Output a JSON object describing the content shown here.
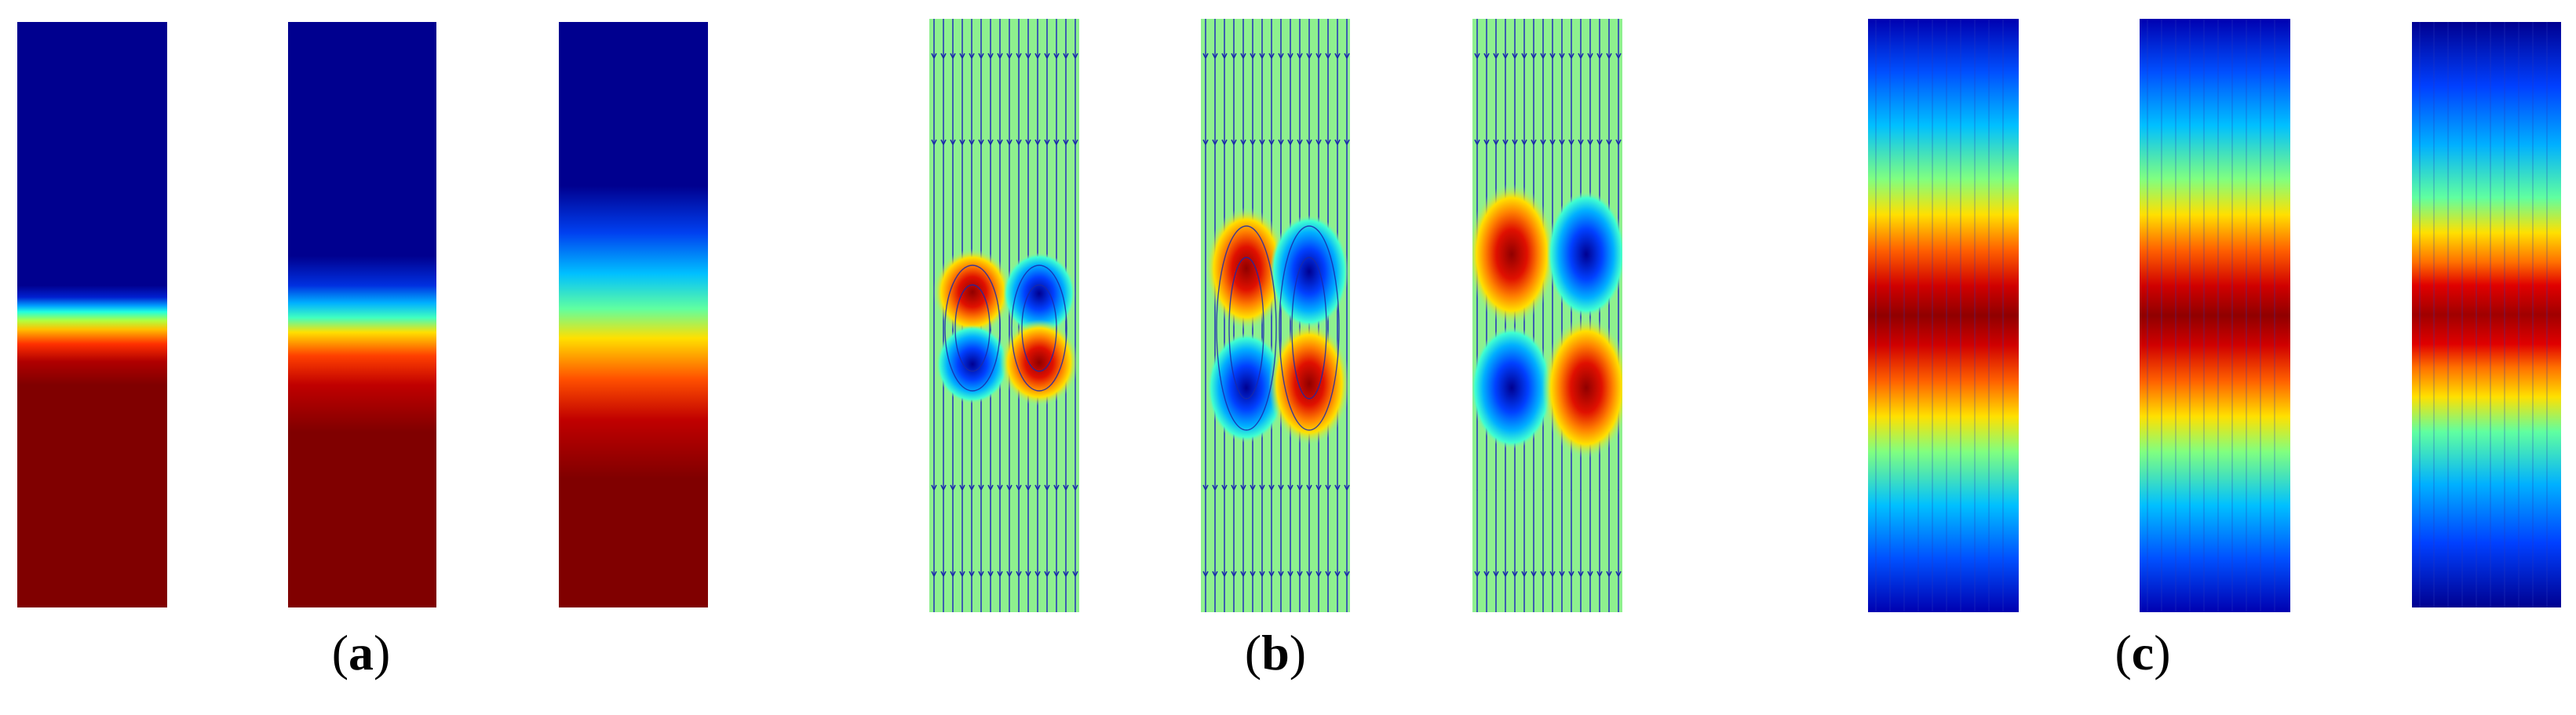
{
  "panels": [
    {
      "id": "a",
      "label": "a"
    },
    {
      "id": "b",
      "label": "b"
    },
    {
      "id": "c",
      "label": "c"
    }
  ],
  "colors": {
    "jet_dark_blue": "#00008f",
    "jet_dark_red": "#800000",
    "background_green": "#90f090",
    "streamline_blue": "#2030c0"
  }
}
